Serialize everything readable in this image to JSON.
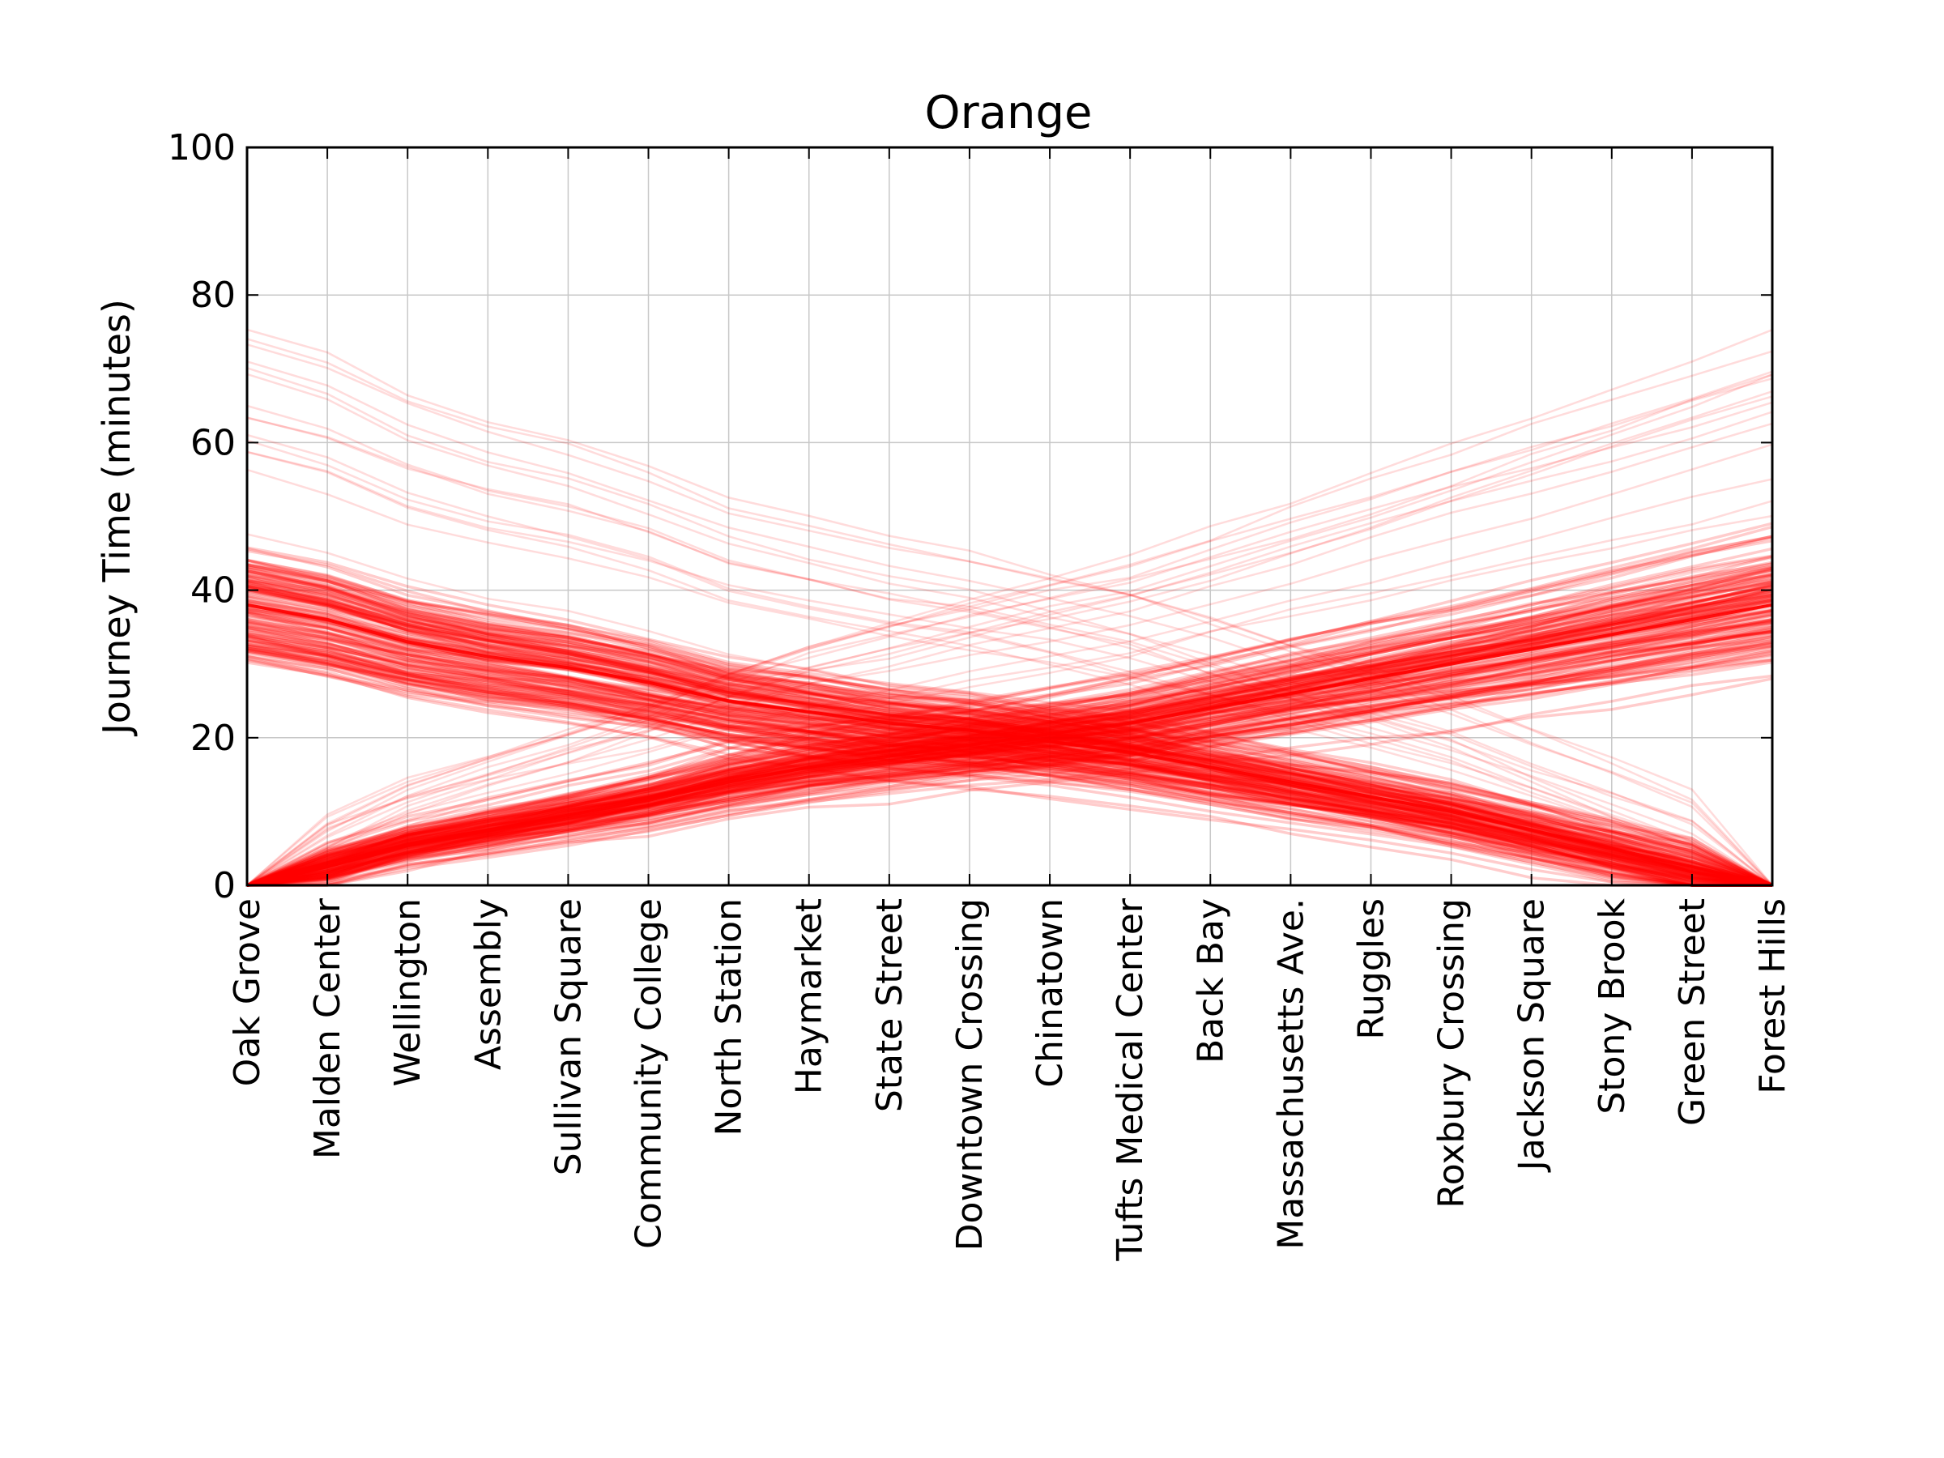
{
  "chart_data": {
    "type": "line",
    "title": "Orange",
    "xlabel": "",
    "ylabel": "Journey Time (minutes)",
    "ylim": [
      0,
      100
    ],
    "yticks": [
      "0",
      "20",
      "40",
      "60",
      "80",
      "100"
    ],
    "grid": true,
    "categories": [
      "Oak Grove",
      "Malden Center",
      "Wellington",
      "Assembly",
      "Sullivan Square",
      "Community College",
      "North Station",
      "Haymarket",
      "State Street",
      "Downtown Crossing",
      "Chinatown",
      "Tufts Medical Center",
      "Back Bay",
      "Massachusetts Ave.",
      "Ruggles",
      "Roxbury Crossing",
      "Jackson Square",
      "Stony Brook",
      "Green Street",
      "Forest Hills"
    ],
    "line_color": "#ff0000",
    "series": [
      {
        "direction": "southbound-typical",
        "values": [
          0,
          2.5,
          5.5,
          7.5,
          9.5,
          11.5,
          14,
          16,
          17.5,
          19,
          20.5,
          22,
          24,
          26,
          28,
          30,
          32,
          34,
          36,
          38
        ]
      },
      {
        "direction": "northbound-typical",
        "values": [
          38,
          36,
          33,
          31,
          29.5,
          27.5,
          25,
          23.5,
          22,
          21,
          19.5,
          18,
          16,
          14,
          12,
          10,
          7.5,
          5,
          2.5,
          0
        ]
      }
    ]
  }
}
